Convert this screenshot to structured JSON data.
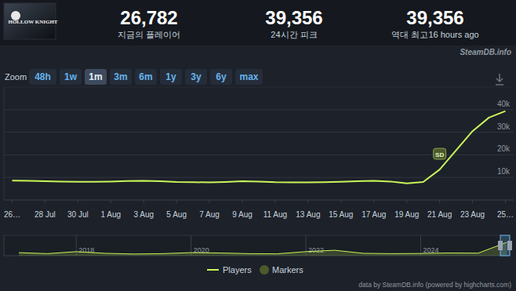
{
  "header": {
    "game": "HOLLOW KNIGHT",
    "stats": [
      {
        "value": "26,782",
        "label": "지금의 플레이어"
      },
      {
        "value": "39,356",
        "label": "24시간 피크"
      },
      {
        "value": "39,356",
        "label": "역대 최고",
        "note": "16 hours ago"
      }
    ]
  },
  "watermark": "SteamDB.info",
  "zoom": {
    "label": "Zoom",
    "buttons": [
      "48h",
      "1w",
      "1m",
      "3m",
      "6m",
      "1y",
      "3y",
      "6y",
      "max"
    ],
    "selected": "1m"
  },
  "extra_legend": {
    "name": "Markers",
    "color": "#4d5a2b"
  },
  "credits": "data by SteamDB.info (powered by highcharts.com)",
  "chart_data": [
    {
      "type": "line",
      "categories": [
        "26…",
        null,
        "28 Jul",
        null,
        "30 Jul",
        null,
        "1 Aug",
        null,
        "3 Aug",
        null,
        "5 Aug",
        null,
        "7 Aug",
        null,
        "9 Aug",
        null,
        "11 Aug",
        null,
        "13 Aug",
        null,
        "15 Aug",
        null,
        "17 Aug",
        null,
        "19 Aug",
        null,
        "21 Aug",
        null,
        "23 Aug",
        null,
        "25…"
      ],
      "series": [
        {
          "name": "Players",
          "color": "#c9f55a",
          "values": [
            8600,
            8500,
            8300,
            8200,
            8100,
            8100,
            8200,
            8400,
            8500,
            8300,
            8000,
            7900,
            7800,
            8000,
            8300,
            8200,
            7900,
            7800,
            7800,
            7900,
            8100,
            8300,
            8500,
            8200,
            7400,
            8000,
            13500,
            22000,
            30500,
            36500,
            39356
          ]
        }
      ],
      "ylim": [
        0,
        50000
      ],
      "yticks": [
        {
          "value": 10000,
          "label": "10k"
        },
        {
          "value": 20000,
          "label": "20k"
        },
        {
          "value": 30000,
          "label": "30k"
        },
        {
          "value": 40000,
          "label": "40k"
        }
      ],
      "grid": true,
      "annotations": [
        {
          "category": "21 Aug",
          "text": "SD"
        }
      ]
    },
    {
      "type": "area",
      "x": [
        2017,
        2017.5,
        2018,
        2018.5,
        2019,
        2019.5,
        2020,
        2020.5,
        2021,
        2021.5,
        2022,
        2022.5,
        2023,
        2023.5,
        2024,
        2024.5,
        2025,
        2025.5
      ],
      "series": [
        {
          "color": "#c9f55a",
          "values": [
            9000,
            6000,
            12000,
            7000,
            5000,
            6000,
            9000,
            8000,
            6000,
            5500,
            12000,
            16000,
            7000,
            6000,
            6500,
            8000,
            7500,
            39356
          ]
        }
      ],
      "xlim": [
        2016.74,
        2025.55
      ],
      "xticks": [
        2018,
        2020,
        2022,
        2024
      ],
      "ylim": [
        0,
        60000
      ],
      "tick_labels": "x"
    }
  ]
}
